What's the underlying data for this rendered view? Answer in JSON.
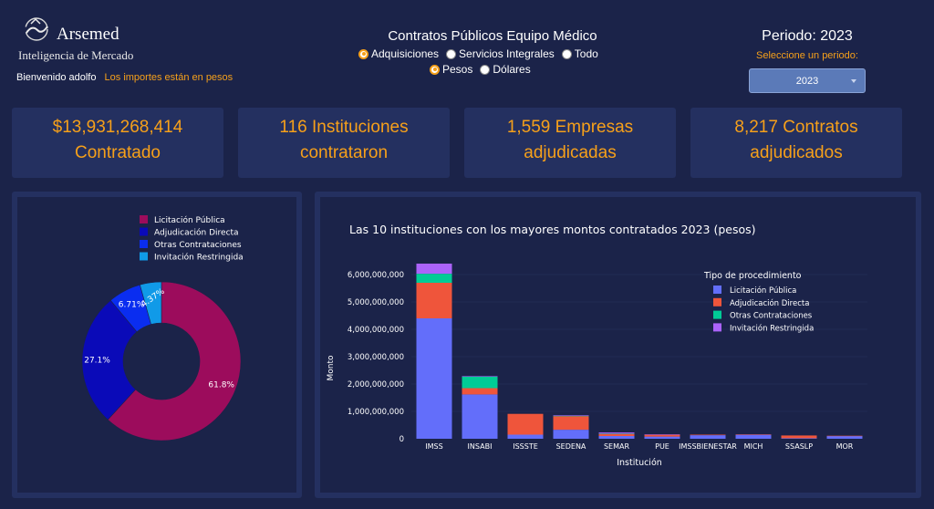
{
  "brand": {
    "name": "Arsemed",
    "subtitle": "Inteligencia de Mercado"
  },
  "header": {
    "welcome": "Bienvenido adolfo",
    "currency_note": "Los importes están en pesos",
    "title": "Contratos Públicos Equipo Médico",
    "procedure_options": [
      {
        "label": "Adquisiciones",
        "selected": true
      },
      {
        "label": "Servicios Integrales",
        "selected": false
      },
      {
        "label": "Todo",
        "selected": false
      }
    ],
    "currency_options": [
      {
        "label": "Pesos",
        "selected": true
      },
      {
        "label": "Dólares",
        "selected": false
      }
    ]
  },
  "period": {
    "title": "Periodo: 2023",
    "prompt": "Seleccione un periodo:",
    "selected": "2023"
  },
  "kpis": [
    {
      "line1": "$13,931,268,414",
      "line2": "Contratado"
    },
    {
      "line1": "116 Instituciones",
      "line2": "contrataron"
    },
    {
      "line1": "1,559 Empresas",
      "line2": "adjudicadas"
    },
    {
      "line1": "8,217 Contratos",
      "line2": "adjudicados"
    }
  ],
  "colors": {
    "accent": "#f6a01a",
    "background": "#1b2349",
    "card": "#243060"
  },
  "chart_data": [
    {
      "type": "pie",
      "hole": true,
      "labels": [
        "Licitación Pública",
        "Adjudicación Directa",
        "Otras Contrataciones",
        "Invitación Restringida"
      ],
      "values": [
        61.8,
        27.1,
        6.71,
        4.37
      ],
      "value_labels": [
        "61.8%",
        "27.1%",
        "6.71%",
        "4.37%"
      ],
      "colors": [
        "#9c0c5c",
        "#0a0ab8",
        "#0a2df0",
        "#109ae8"
      ],
      "legend_placement": "top"
    },
    {
      "type": "bar",
      "stacked": true,
      "title": "Las 10 instituciones con los mayores montos contratados 2023 (pesos)",
      "xlabel": "Institución",
      "ylabel": "Monto",
      "ylim": [
        0,
        6500000000
      ],
      "yticks": [
        0,
        1000000000,
        2000000000,
        3000000000,
        4000000000,
        5000000000,
        6000000000
      ],
      "ytick_labels": [
        "0",
        "1,000,000,000",
        "2,000,000,000",
        "3,000,000,000",
        "4,000,000,000",
        "5,000,000,000",
        "6,000,000,000"
      ],
      "legend_title": "Tipo de procedimiento",
      "legend_placement": "top-right",
      "categories": [
        "IMSS",
        "INSABI",
        "ISSSTE",
        "SEDENA",
        "SEMAR",
        "PUE",
        "IMSSBIENESTAR",
        "MICH",
        "SSASLP",
        "MOR"
      ],
      "series": [
        {
          "name": "Licitación Pública",
          "color": "#636efa",
          "values": [
            4400000000,
            1620000000,
            150000000,
            330000000,
            100000000,
            80000000,
            130000000,
            150000000,
            20000000,
            100000000
          ]
        },
        {
          "name": "Adjudicación Directa",
          "color": "#ef553b",
          "values": [
            1300000000,
            230000000,
            760000000,
            500000000,
            80000000,
            70000000,
            20000000,
            10000000,
            100000000,
            10000000
          ]
        },
        {
          "name": "Otras Contrataciones",
          "color": "#00cc96",
          "values": [
            330000000,
            420000000,
            0,
            10000000,
            10000000,
            0,
            0,
            0,
            0,
            0
          ]
        },
        {
          "name": "Invitación Restringida",
          "color": "#ab63fa",
          "values": [
            370000000,
            20000000,
            0,
            20000000,
            40000000,
            10000000,
            0,
            0,
            0,
            0
          ]
        }
      ]
    }
  ]
}
